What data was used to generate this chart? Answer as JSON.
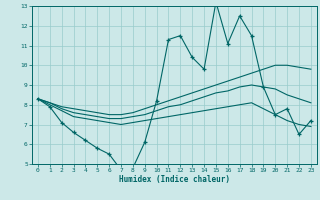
{
  "xlabel": "Humidex (Indice chaleur)",
  "xlim": [
    -0.5,
    23.5
  ],
  "ylim": [
    5,
    13
  ],
  "yticks": [
    5,
    6,
    7,
    8,
    9,
    10,
    11,
    12,
    13
  ],
  "xticks": [
    0,
    1,
    2,
    3,
    4,
    5,
    6,
    7,
    8,
    9,
    10,
    11,
    12,
    13,
    14,
    15,
    16,
    17,
    18,
    19,
    20,
    21,
    22,
    23
  ],
  "bg_color": "#cce8e8",
  "grid_color": "#99cccc",
  "line_color": "#006666",
  "line1_x": [
    0,
    1,
    2,
    3,
    4,
    5,
    6,
    7,
    8,
    9,
    10,
    11,
    12,
    13,
    14,
    15,
    16,
    17,
    18,
    19,
    20,
    21,
    22,
    23
  ],
  "line1_y": [
    8.3,
    7.9,
    7.1,
    6.6,
    6.2,
    5.8,
    5.5,
    4.7,
    4.8,
    6.1,
    8.2,
    11.3,
    11.5,
    10.4,
    9.8,
    13.2,
    11.1,
    12.5,
    11.5,
    8.9,
    7.5,
    7.8,
    6.5,
    7.2
  ],
  "line2_x": [
    0,
    1,
    2,
    3,
    4,
    5,
    6,
    7,
    8,
    9,
    10,
    11,
    12,
    13,
    14,
    15,
    16,
    17,
    18,
    19,
    20,
    21,
    22,
    23
  ],
  "line2_y": [
    8.3,
    8.1,
    7.9,
    7.8,
    7.7,
    7.6,
    7.5,
    7.5,
    7.6,
    7.8,
    8.0,
    8.2,
    8.4,
    8.6,
    8.8,
    9.0,
    9.2,
    9.4,
    9.6,
    9.8,
    10.0,
    10.0,
    9.9,
    9.8
  ],
  "line3_x": [
    0,
    1,
    2,
    3,
    4,
    5,
    6,
    7,
    8,
    9,
    10,
    11,
    12,
    13,
    14,
    15,
    16,
    17,
    18,
    19,
    20,
    21,
    22,
    23
  ],
  "line3_y": [
    8.3,
    8.1,
    7.8,
    7.6,
    7.5,
    7.4,
    7.3,
    7.3,
    7.4,
    7.5,
    7.7,
    7.9,
    8.0,
    8.2,
    8.4,
    8.6,
    8.7,
    8.9,
    9.0,
    8.9,
    8.8,
    8.5,
    8.3,
    8.1
  ],
  "line4_x": [
    0,
    1,
    2,
    3,
    4,
    5,
    6,
    7,
    8,
    9,
    10,
    11,
    12,
    13,
    14,
    15,
    16,
    17,
    18,
    19,
    20,
    21,
    22,
    23
  ],
  "line4_y": [
    8.3,
    8.0,
    7.7,
    7.4,
    7.3,
    7.2,
    7.1,
    7.0,
    7.1,
    7.2,
    7.3,
    7.4,
    7.5,
    7.6,
    7.7,
    7.8,
    7.9,
    8.0,
    8.1,
    7.8,
    7.5,
    7.2,
    7.0,
    6.9
  ]
}
